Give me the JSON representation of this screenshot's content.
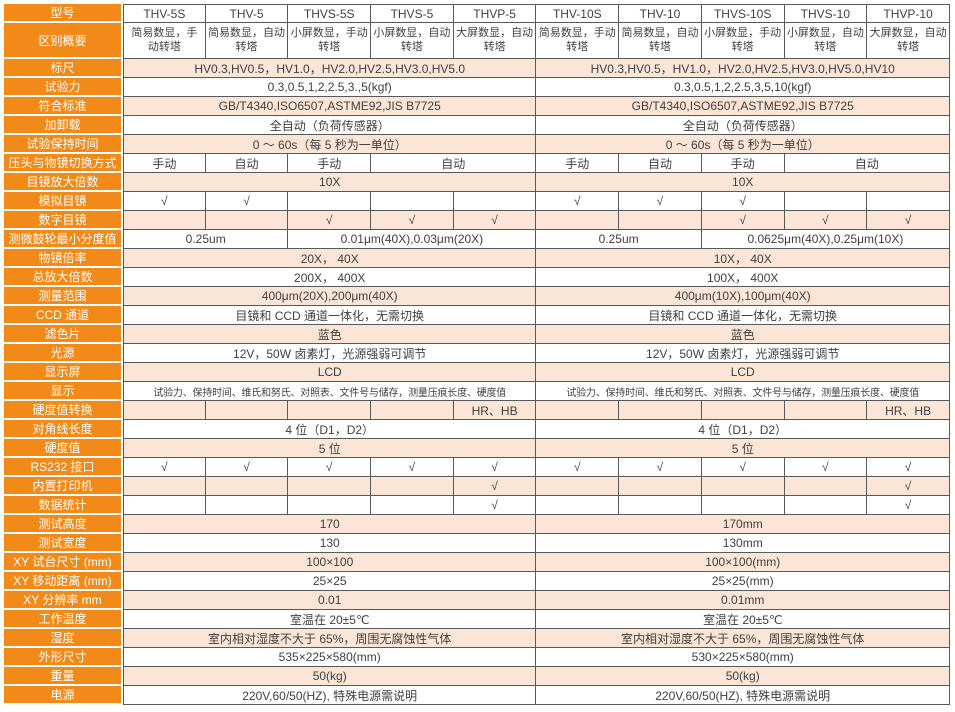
{
  "colors": {
    "accent_orange": "#F28A1A",
    "row_peach": "#FBE5D6",
    "grid_border": "#595959",
    "label_text": "#FFFFFF",
    "body_text": "#3F3F3F"
  },
  "table": {
    "rows": [
      {
        "label": "型号",
        "cells": [
          {
            "t": "THV-5S"
          },
          {
            "t": "THV-5"
          },
          {
            "t": "THVS-5S"
          },
          {
            "t": "THVS-5"
          },
          {
            "t": "THVP-5"
          },
          {
            "t": "THV-10S"
          },
          {
            "t": "THV-10"
          },
          {
            "t": "THVS-10S"
          },
          {
            "t": "THVS-10"
          },
          {
            "t": "THVP-10"
          }
        ]
      },
      {
        "label": "区别概要",
        "cells": [
          {
            "t": "简易数显，手动转塔"
          },
          {
            "t": "简易数显，自动转塔"
          },
          {
            "t": "小屏数显，手动转塔"
          },
          {
            "t": "小屏数显，自动转塔"
          },
          {
            "t": "大屏数显，自动转塔"
          },
          {
            "t": "简易数显，手动转塔"
          },
          {
            "t": "简易数显，自动转塔"
          },
          {
            "t": "小屏数显，手动转塔"
          },
          {
            "t": "小屏数显，自动转塔"
          },
          {
            "t": "大屏数显，自动转塔"
          }
        ]
      },
      {
        "label": "标尺",
        "cells": [
          {
            "t": "HV0.3,HV0.5，HV1.0，HV2.0,HV2.5,HV3.0,HV5.0",
            "span": 5
          },
          {
            "t": "HV0.3,HV0.5，HV1.0，HV2.0,HV2.5,HV3.0,HV5.0,HV10",
            "span": 5
          }
        ]
      },
      {
        "label": "试验力",
        "cells": [
          {
            "t": "0.3,0.5,1,2,2.5,3.,5(kgf)",
            "span": 5
          },
          {
            "t": "0.3,0.5,1,2,2.5,3,5,10(kgf)",
            "span": 5
          }
        ]
      },
      {
        "label": "符合标准",
        "cells": [
          {
            "t": "GB/T4340,ISO6507,ASTME92,JIS B7725",
            "span": 5
          },
          {
            "t": "GB/T4340,ISO6507,ASTME92,JIS B7725",
            "span": 5
          }
        ]
      },
      {
        "label": "加卸载",
        "cells": [
          {
            "t": "全自动（负荷传感器）",
            "span": 5
          },
          {
            "t": "全自动（负荷传感器）",
            "span": 5
          }
        ]
      },
      {
        "label": "试验保持时间",
        "cells": [
          {
            "t": "0 ～ 60s（每 5 秒为一单位）",
            "span": 5
          },
          {
            "t": "0 ～ 60s（每 5 秒为一单位）",
            "span": 5
          }
        ]
      },
      {
        "label": "压头与物镜切换方式",
        "cells": [
          {
            "t": "手动"
          },
          {
            "t": "自动"
          },
          {
            "t": "手动"
          },
          {
            "t": "自动",
            "span": 2
          },
          {
            "t": "手动"
          },
          {
            "t": "自动"
          },
          {
            "t": "手动"
          },
          {
            "t": "自动",
            "span": 2
          }
        ]
      },
      {
        "label": "目镜放大倍数",
        "cells": [
          {
            "t": "10X",
            "span": 5
          },
          {
            "t": "10X",
            "span": 5
          }
        ]
      },
      {
        "label": "模拟目镜",
        "cells": [
          {
            "t": "√"
          },
          {
            "t": "√"
          },
          {
            "t": ""
          },
          {
            "t": ""
          },
          {
            "t": ""
          },
          {
            "t": "√"
          },
          {
            "t": "√"
          },
          {
            "t": "√"
          },
          {
            "t": ""
          },
          {
            "t": ""
          }
        ]
      },
      {
        "label": "数字目镜",
        "cells": [
          {
            "t": ""
          },
          {
            "t": ""
          },
          {
            "t": "√"
          },
          {
            "t": "√"
          },
          {
            "t": "√"
          },
          {
            "t": ""
          },
          {
            "t": ""
          },
          {
            "t": "√"
          },
          {
            "t": "√"
          },
          {
            "t": "√"
          }
        ]
      },
      {
        "label": "测微鼓轮最小分度值",
        "cells": [
          {
            "t": "0.25um",
            "span": 2
          },
          {
            "t": "0.01μm(40X),0.03μm(20X)",
            "span": 3
          },
          {
            "t": "0.25um",
            "span": 2
          },
          {
            "t": "0.0625μm(40X),0.25μm(10X)",
            "span": 3
          }
        ]
      },
      {
        "label": "物镜倍率",
        "cells": [
          {
            "t": "20X， 40X",
            "span": 5
          },
          {
            "t": "10X， 40X",
            "span": 5
          }
        ]
      },
      {
        "label": "总放大倍数",
        "cells": [
          {
            "t": "200X， 400X",
            "span": 5
          },
          {
            "t": "100X， 400X",
            "span": 5
          }
        ]
      },
      {
        "label": "测量范围",
        "cells": [
          {
            "t": "400μm(20X),200μm(40X)",
            "span": 5
          },
          {
            "t": "400μm(10X),100μm(40X)",
            "span": 5
          }
        ]
      },
      {
        "label": "CCD 通道",
        "cells": [
          {
            "t": "目镜和 CCD 通道一体化，无需切换",
            "span": 5
          },
          {
            "t": "目镜和 CCD 通道一体化，无需切换",
            "span": 5
          }
        ]
      },
      {
        "label": "滤色片",
        "cells": [
          {
            "t": "蓝色",
            "span": 5
          },
          {
            "t": "蓝色",
            "span": 5
          }
        ]
      },
      {
        "label": "光源",
        "cells": [
          {
            "t": "12V，50W 卤素灯，光源强弱可调节",
            "span": 5
          },
          {
            "t": "12V，50W 卤素灯，光源强弱可调节",
            "span": 5
          }
        ]
      },
      {
        "label": "显示屏",
        "cells": [
          {
            "t": "LCD",
            "span": 5
          },
          {
            "t": "LCD",
            "span": 5
          }
        ]
      },
      {
        "label": "显示",
        "cells": [
          {
            "t": "试验力、保持时间、维氏和努氏、对照表、文件号与储存，测量压痕长度、硬度值",
            "span": 5
          },
          {
            "t": "试验力、保持时间、维氏和努氏、对照表、文件号与储存，测量压痕长度、硬度值",
            "span": 5
          }
        ]
      },
      {
        "label": "硬度值转换",
        "cells": [
          {
            "t": ""
          },
          {
            "t": ""
          },
          {
            "t": ""
          },
          {
            "t": ""
          },
          {
            "t": "HR、HB"
          },
          {
            "t": ""
          },
          {
            "t": ""
          },
          {
            "t": ""
          },
          {
            "t": ""
          },
          {
            "t": "HR、HB"
          }
        ]
      },
      {
        "label": "对角线长度",
        "cells": [
          {
            "t": "4 位（D1，D2）",
            "span": 5
          },
          {
            "t": "4 位（D1，D2）",
            "span": 5
          }
        ]
      },
      {
        "label": "硬度值",
        "cells": [
          {
            "t": "5 位",
            "span": 5
          },
          {
            "t": "5 位",
            "span": 5
          }
        ]
      },
      {
        "label": "RS232 接口",
        "cells": [
          {
            "t": "√"
          },
          {
            "t": "√"
          },
          {
            "t": "√"
          },
          {
            "t": "√"
          },
          {
            "t": "√"
          },
          {
            "t": "√"
          },
          {
            "t": "√"
          },
          {
            "t": "√"
          },
          {
            "t": "√"
          },
          {
            "t": "√"
          }
        ]
      },
      {
        "label": "内置打印机",
        "cells": [
          {
            "t": ""
          },
          {
            "t": ""
          },
          {
            "t": ""
          },
          {
            "t": ""
          },
          {
            "t": "√"
          },
          {
            "t": ""
          },
          {
            "t": ""
          },
          {
            "t": ""
          },
          {
            "t": ""
          },
          {
            "t": "√"
          }
        ]
      },
      {
        "label": "数据统计",
        "cells": [
          {
            "t": ""
          },
          {
            "t": ""
          },
          {
            "t": ""
          },
          {
            "t": ""
          },
          {
            "t": "√"
          },
          {
            "t": ""
          },
          {
            "t": ""
          },
          {
            "t": ""
          },
          {
            "t": ""
          },
          {
            "t": "√"
          }
        ]
      },
      {
        "label": "测试高度",
        "cells": [
          {
            "t": "170",
            "span": 5
          },
          {
            "t": "170mm",
            "span": 5
          }
        ]
      },
      {
        "label": "测试宽度",
        "cells": [
          {
            "t": "130",
            "span": 5
          },
          {
            "t": "130mm",
            "span": 5
          }
        ]
      },
      {
        "label": "XY 试台尺寸 (mm)",
        "cells": [
          {
            "t": "100×100",
            "span": 5
          },
          {
            "t": "100×100(mm)",
            "span": 5
          }
        ]
      },
      {
        "label": "XY 移动距离 (mm)",
        "cells": [
          {
            "t": "25×25",
            "span": 5
          },
          {
            "t": "25×25(mm)",
            "span": 5
          }
        ]
      },
      {
        "label": "XY 分辨率 mm",
        "cells": [
          {
            "t": "0.01",
            "span": 5
          },
          {
            "t": "0.01mm",
            "span": 5
          }
        ]
      },
      {
        "label": "工作温度",
        "cells": [
          {
            "t": "室温在 20±5℃",
            "span": 5
          },
          {
            "t": "室温在 20±5℃",
            "span": 5
          }
        ]
      },
      {
        "label": "湿度",
        "cells": [
          {
            "t": "室内相对湿度不大于 65%，周围无腐蚀性气体",
            "span": 5
          },
          {
            "t": "室内相对湿度不大于 65%，周围无腐蚀性气体",
            "span": 5
          }
        ]
      },
      {
        "label": "外形尺寸",
        "cells": [
          {
            "t": "535×225×580(mm)",
            "span": 5
          },
          {
            "t": "530×225×580(mm)",
            "span": 5
          }
        ]
      },
      {
        "label": "重量",
        "cells": [
          {
            "t": "50(kg)",
            "span": 5
          },
          {
            "t": "50(kg)",
            "span": 5
          }
        ]
      },
      {
        "label": "电源",
        "cells": [
          {
            "t": "220V,60/50(HZ), 特殊电源需说明",
            "span": 5
          },
          {
            "t": "220V,60/50(HZ), 特殊电源需说明",
            "span": 5
          }
        ]
      }
    ]
  }
}
